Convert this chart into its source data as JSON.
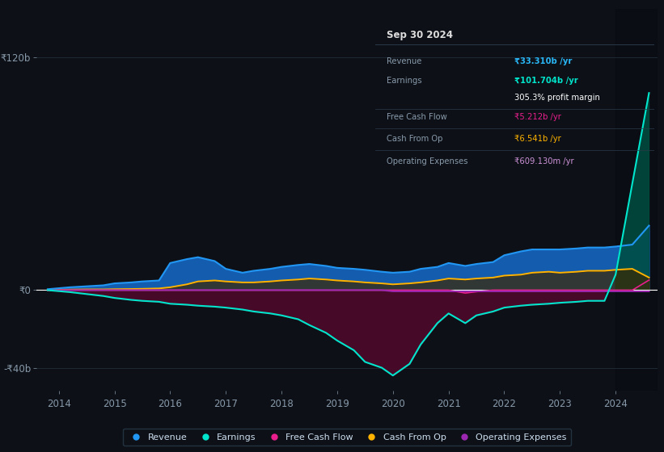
{
  "background_color": "#0d1117",
  "plot_bg_color": "#0d1117",
  "grid_color": "#1e2933",
  "zero_line_color": "#ffffff",
  "title_box": {
    "title": "Sep 30 2024",
    "rows": [
      {
        "label": "Revenue",
        "value": "₹33.310b /yr",
        "value_color": "#29b6f6"
      },
      {
        "label": "Earnings",
        "value": "₹101.704b /yr",
        "value_color": "#00e5cc"
      },
      {
        "label": "",
        "value": "305.3% profit margin",
        "value_color": "#ffffff"
      },
      {
        "label": "Free Cash Flow",
        "value": "₹5.212b /yr",
        "value_color": "#e91e8c"
      },
      {
        "label": "Cash From Op",
        "value": "₹6.541b /yr",
        "value_color": "#ffb300"
      },
      {
        "label": "Operating Expenses",
        "value": "₹609.130m /yr",
        "value_color": "#ce93d8"
      }
    ]
  },
  "ylim": [
    -52,
    145
  ],
  "yticks": [
    -40,
    0,
    120
  ],
  "ytick_labels": [
    "-₹40b",
    "₹0",
    "₹120b"
  ],
  "years": [
    2013.8,
    2014.0,
    2014.2,
    2014.5,
    2014.8,
    2015.0,
    2015.3,
    2015.5,
    2015.8,
    2016.0,
    2016.3,
    2016.5,
    2016.8,
    2017.0,
    2017.3,
    2017.5,
    2017.8,
    2018.0,
    2018.3,
    2018.5,
    2018.8,
    2019.0,
    2019.3,
    2019.5,
    2019.8,
    2020.0,
    2020.3,
    2020.5,
    2020.8,
    2021.0,
    2021.3,
    2021.5,
    2021.8,
    2022.0,
    2022.3,
    2022.5,
    2022.8,
    2023.0,
    2023.3,
    2023.5,
    2023.8,
    2024.0,
    2024.3,
    2024.6
  ],
  "revenue": [
    0.5,
    1.0,
    1.5,
    2.0,
    2.5,
    3.5,
    4.0,
    4.5,
    5.0,
    14.0,
    16.0,
    17.0,
    15.0,
    11.0,
    9.0,
    10.0,
    11.0,
    12.0,
    13.0,
    13.5,
    12.5,
    11.5,
    11.0,
    10.5,
    9.5,
    9.0,
    9.5,
    11.0,
    12.0,
    14.0,
    12.5,
    13.5,
    14.5,
    18.0,
    20.0,
    21.0,
    21.0,
    21.0,
    21.5,
    22.0,
    22.0,
    22.5,
    23.5,
    33.3
  ],
  "earnings": [
    0.0,
    -0.5,
    -1.0,
    -2.0,
    -3.0,
    -4.0,
    -5.0,
    -5.5,
    -6.0,
    -7.0,
    -7.5,
    -8.0,
    -8.5,
    -9.0,
    -10.0,
    -11.0,
    -12.0,
    -13.0,
    -15.0,
    -18.0,
    -22.0,
    -26.0,
    -31.0,
    -37.0,
    -40.0,
    -44.0,
    -38.0,
    -28.0,
    -17.0,
    -12.0,
    -17.0,
    -13.0,
    -11.0,
    -9.0,
    -8.0,
    -7.5,
    -7.0,
    -6.5,
    -6.0,
    -5.5,
    -5.5,
    8.0,
    55.0,
    101.7
  ],
  "free_cash_flow": [
    0.0,
    0.0,
    0.0,
    0.0,
    0.0,
    0.0,
    0.0,
    0.0,
    0.0,
    0.0,
    0.0,
    0.0,
    0.0,
    0.0,
    0.0,
    0.0,
    0.0,
    0.0,
    0.0,
    0.0,
    0.0,
    0.0,
    0.0,
    0.0,
    0.0,
    0.0,
    0.0,
    0.0,
    0.0,
    0.0,
    -1.5,
    -0.8,
    0.0,
    0.0,
    0.0,
    0.0,
    0.0,
    0.0,
    0.0,
    0.0,
    0.0,
    0.0,
    0.0,
    5.2
  ],
  "cash_from_op": [
    0.0,
    0.2,
    0.3,
    0.4,
    0.4,
    0.5,
    0.6,
    0.7,
    0.9,
    1.5,
    3.0,
    4.5,
    5.0,
    4.5,
    4.0,
    4.0,
    4.5,
    5.0,
    5.5,
    6.0,
    5.5,
    5.0,
    4.5,
    4.0,
    3.5,
    3.0,
    3.5,
    4.0,
    5.0,
    6.0,
    5.5,
    6.0,
    6.5,
    7.5,
    8.0,
    9.0,
    9.5,
    9.0,
    9.5,
    10.0,
    10.0,
    10.5,
    11.0,
    6.5
  ],
  "operating_expenses": [
    0.0,
    0.0,
    0.0,
    0.0,
    0.0,
    0.0,
    0.0,
    0.0,
    0.0,
    0.0,
    0.0,
    0.0,
    0.0,
    0.0,
    0.0,
    0.0,
    0.0,
    0.0,
    0.0,
    0.0,
    0.0,
    0.0,
    0.0,
    0.0,
    0.0,
    -0.6,
    -0.6,
    -0.6,
    -0.6,
    -0.6,
    -0.6,
    -0.6,
    -0.6,
    -0.6,
    -0.6,
    -0.6,
    -0.6,
    -0.6,
    -0.6,
    -0.6,
    -0.6,
    -0.6,
    -0.6,
    -0.6
  ],
  "revenue_color": "#2196f3",
  "earnings_color": "#00e5cc",
  "free_cash_flow_color": "#e91e8c",
  "cash_from_op_color": "#ffb300",
  "operating_expenses_color": "#9c27b0",
  "revenue_fill_color": "#1565c0",
  "earnings_neg_fill_color": "#4a0a2a",
  "earnings_pos_fill_color": "#004d40",
  "legend_items": [
    {
      "label": "Revenue",
      "color": "#2196f3"
    },
    {
      "label": "Earnings",
      "color": "#00e5cc"
    },
    {
      "label": "Free Cash Flow",
      "color": "#e91e8c"
    },
    {
      "label": "Cash From Op",
      "color": "#ffb300"
    },
    {
      "label": "Operating Expenses",
      "color": "#9c27b0"
    }
  ],
  "xtick_years": [
    2014,
    2015,
    2016,
    2017,
    2018,
    2019,
    2020,
    2021,
    2022,
    2023,
    2024
  ],
  "shaded_right_start": 2024.0,
  "xlim_left": 2013.6,
  "xlim_right": 2024.75
}
